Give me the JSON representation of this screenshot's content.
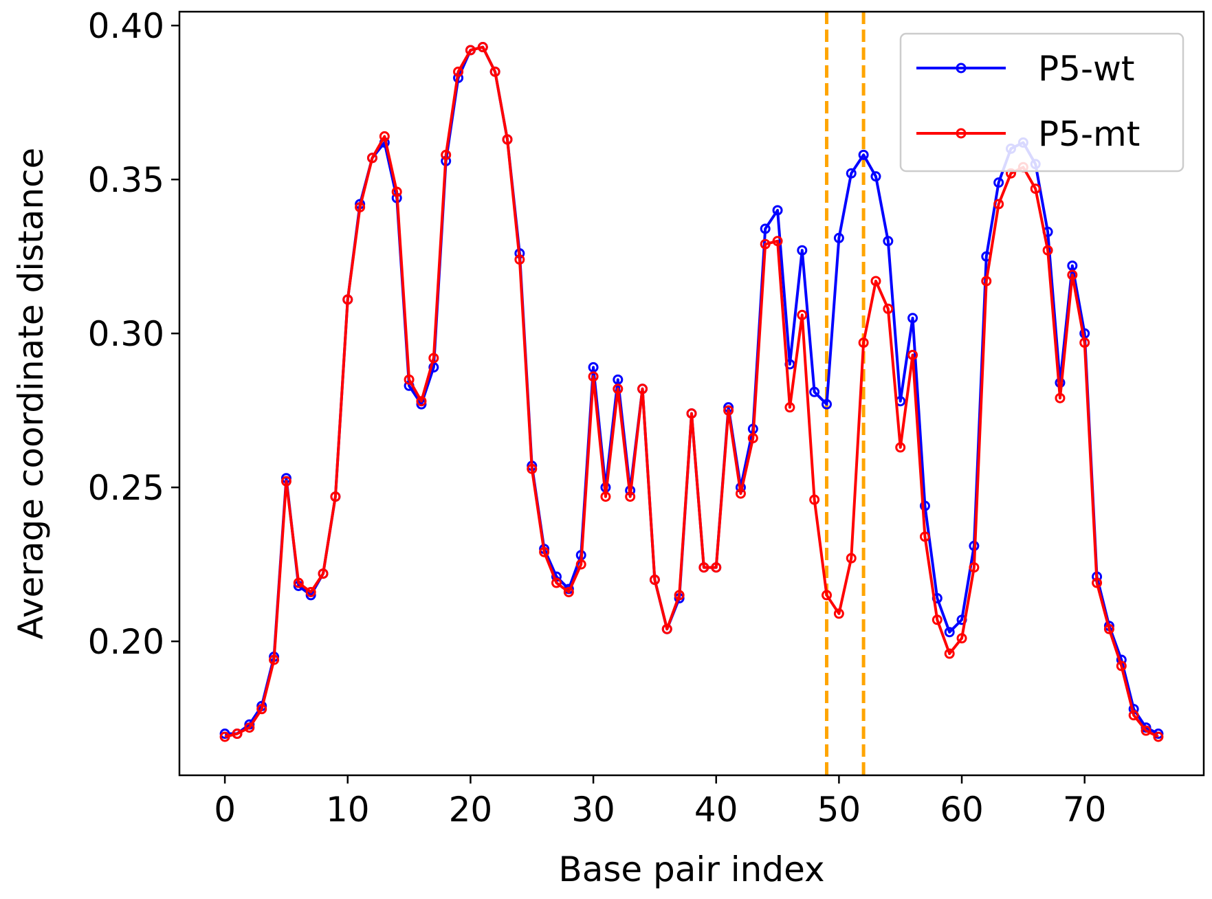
{
  "chart_data": {
    "type": "line",
    "title": "",
    "xlabel": "Base pair index",
    "ylabel": "Average coordinate distance",
    "xlim": [
      -3.7,
      79.7
    ],
    "ylim": [
      0.1565,
      0.4045
    ],
    "xticks": [
      0,
      10,
      20,
      30,
      40,
      50,
      60,
      70
    ],
    "xtick_labels": [
      "0",
      "10",
      "20",
      "30",
      "40",
      "50",
      "60",
      "70"
    ],
    "yticks": [
      0.2,
      0.25,
      0.3,
      0.35,
      0.4
    ],
    "ytick_labels": [
      "0.20",
      "0.25",
      "0.30",
      "0.35",
      "0.40"
    ],
    "grid": false,
    "legend_position": "top-right",
    "vlines": {
      "x": [
        49,
        52
      ],
      "color": "#FFA500",
      "style": "dashed"
    },
    "series": [
      {
        "name": "P5-wt",
        "color": "#0000FF",
        "values": [
          0.17,
          0.17,
          0.173,
          0.179,
          0.195,
          0.253,
          0.218,
          0.215,
          0.222,
          0.247,
          0.311,
          0.342,
          0.357,
          0.362,
          0.344,
          0.283,
          0.277,
          0.289,
          0.356,
          0.383,
          0.392,
          0.393,
          0.385,
          0.363,
          0.326,
          0.257,
          0.23,
          0.221,
          0.217,
          0.228,
          0.289,
          0.25,
          0.285,
          0.249,
          0.282,
          0.22,
          0.204,
          0.214,
          0.274,
          0.224,
          0.224,
          0.276,
          0.25,
          0.269,
          0.334,
          0.34,
          0.29,
          0.327,
          0.281,
          0.277,
          0.331,
          0.352,
          0.358,
          0.351,
          0.33,
          0.278,
          0.305,
          0.244,
          0.214,
          0.203,
          0.207,
          0.231,
          0.325,
          0.349,
          0.36,
          0.362,
          0.355,
          0.333,
          0.284,
          0.322,
          0.3,
          0.221,
          0.205,
          0.194,
          0.178,
          0.172,
          0.17
        ]
      },
      {
        "name": "P5-mt",
        "color": "#FF0000",
        "values": [
          0.169,
          0.17,
          0.172,
          0.178,
          0.194,
          0.252,
          0.219,
          0.216,
          0.222,
          0.247,
          0.311,
          0.341,
          0.357,
          0.364,
          0.346,
          0.285,
          0.278,
          0.292,
          0.358,
          0.385,
          0.392,
          0.393,
          0.385,
          0.363,
          0.324,
          0.256,
          0.229,
          0.219,
          0.216,
          0.225,
          0.286,
          0.247,
          0.282,
          0.247,
          0.282,
          0.22,
          0.204,
          0.215,
          0.274,
          0.224,
          0.224,
          0.275,
          0.248,
          0.266,
          0.329,
          0.33,
          0.276,
          0.306,
          0.246,
          0.215,
          0.209,
          0.227,
          0.297,
          0.317,
          0.308,
          0.263,
          0.293,
          0.234,
          0.207,
          0.196,
          0.201,
          0.224,
          0.317,
          0.342,
          0.352,
          0.354,
          0.347,
          0.327,
          0.279,
          0.319,
          0.297,
          0.219,
          0.204,
          0.192,
          0.176,
          0.171,
          0.169
        ]
      }
    ]
  }
}
